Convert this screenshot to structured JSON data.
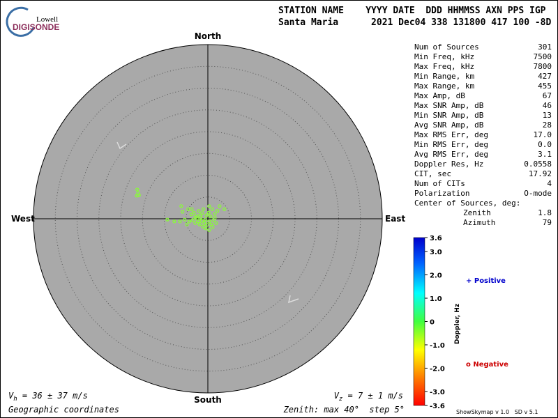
{
  "logo": {
    "top": "Lowell",
    "bottom": "DIGISONDE"
  },
  "header": {
    "line1": "STATION NAME    YYYY DATE  DDD HHMMSS AXN PPS IGP",
    "line2": "Santa Maria      2021 Dec04 338 131800 417 100 -8D"
  },
  "compass": {
    "north": "North",
    "south": "South",
    "west": "West",
    "east": "East"
  },
  "zenith": {
    "prefix": "Zenith: max ",
    "max": 40,
    "mid": "°  step ",
    "step": 5,
    "suffix": "°"
  },
  "sources": [
    [
      -16.2,
      6.7
    ],
    [
      -16.0,
      5.9
    ],
    [
      -16.3,
      5.3
    ],
    [
      -15.8,
      5.4
    ],
    [
      -6.1,
      2.9
    ],
    [
      -5.8,
      1.6
    ],
    [
      -4.5,
      2.2
    ],
    [
      -3.8,
      1.0
    ],
    [
      -3.2,
      1.4
    ],
    [
      -2.6,
      0.6
    ],
    [
      -2.1,
      1.8
    ],
    [
      -1.6,
      0.3
    ],
    [
      -1.3,
      1.3
    ],
    [
      -1.0,
      2.2
    ],
    [
      -0.6,
      -0.2
    ],
    [
      -0.3,
      0.8
    ],
    [
      0.2,
      1.4
    ],
    [
      0.3,
      -0.6
    ],
    [
      0.6,
      0.5
    ],
    [
      1.0,
      2.2
    ],
    [
      1.3,
      -0.3
    ],
    [
      1.6,
      1.1
    ],
    [
      1.9,
      -1.0
    ],
    [
      2.2,
      1.8
    ],
    [
      2.7,
      2.9
    ],
    [
      3.8,
      2.2
    ],
    [
      -9.3,
      -0.2
    ],
    [
      -7.7,
      -0.6
    ],
    [
      -6.4,
      -0.6
    ],
    [
      -5.3,
      -0.2
    ],
    [
      -4.8,
      -1.3
    ],
    [
      -4.2,
      -0.6
    ],
    [
      -3.5,
      -0.3
    ],
    [
      -2.9,
      -1.0
    ],
    [
      -2.2,
      -0.6
    ],
    [
      -1.9,
      -1.3
    ],
    [
      -1.4,
      -0.5
    ],
    [
      -1.1,
      -1.8
    ],
    [
      -0.8,
      -1.0
    ],
    [
      -0.5,
      -2.2
    ],
    [
      -0.2,
      -1.4
    ],
    [
      0.3,
      -2.6
    ],
    [
      0.8,
      -1.3
    ],
    [
      1.1,
      -1.9
    ],
    [
      1.6,
      0.2
    ],
    [
      -2.4,
      0.0
    ],
    [
      -1.8,
      0.8
    ],
    [
      -2.9,
      0.3
    ],
    [
      -3.7,
      2.2
    ],
    [
      0.3,
      2.9
    ]
  ],
  "stats": [
    [
      "Num of Sources",
      "301"
    ],
    [
      "Min Freq, kHz",
      "7500"
    ],
    [
      "Max Freq, kHz",
      "7800"
    ],
    [
      "Min Range, km",
      "427"
    ],
    [
      "Max Range, km",
      "455"
    ],
    [
      "Max Amp, dB",
      "67"
    ],
    [
      "Max SNR Amp, dB",
      "46"
    ],
    [
      "Min SNR Amp, dB",
      "13"
    ],
    [
      "Avg SNR Amp, dB",
      "28"
    ],
    [
      "Max RMS Err, deg",
      "17.0"
    ],
    [
      "Min RMS Err, deg",
      "0.0"
    ],
    [
      "Avg RMS Err, deg",
      "3.1"
    ],
    [
      "Doppler Res, Hz",
      "0.0558"
    ],
    [
      "CIT, sec",
      "17.92"
    ],
    [
      "Num of CITs",
      "4"
    ],
    [
      "Polarization",
      "O-mode"
    ]
  ],
  "center": {
    "title": "Center of Sources, deg:",
    "zenith_label": "Zenith",
    "zenith_value": "1.8",
    "azimuth_label": "Azimuth",
    "azimuth_value": "79"
  },
  "colorbar": {
    "label": "Doppler, Hz",
    "range": [
      -3.6,
      3.6
    ],
    "ticks": [
      3.6,
      {
        "value": 3,
        "label": "3.0"
      },
      {
        "value": 2,
        "label": "2.0"
      },
      {
        "value": 1,
        "label": "1.0"
      },
      0,
      {
        "value": -1,
        "label": "-1.0"
      },
      {
        "value": -2,
        "label": "-2.0"
      },
      {
        "value": -3,
        "label": "-3.0"
      },
      -3.6
    ]
  },
  "legend": {
    "positive": "+ Positive",
    "negative": "o Negative"
  },
  "velocity": {
    "vh": "V",
    "vh_sub": "h",
    "vh_text": " = 36 ± 37 m/s",
    "vz": "V",
    "vz_sub": "z",
    "vz_text": " = 7 ± 1 m/s"
  },
  "footer": {
    "coords": "Geographic coordinates",
    "version": "ShowSkymap v 1.0   SD v 5.1"
  }
}
